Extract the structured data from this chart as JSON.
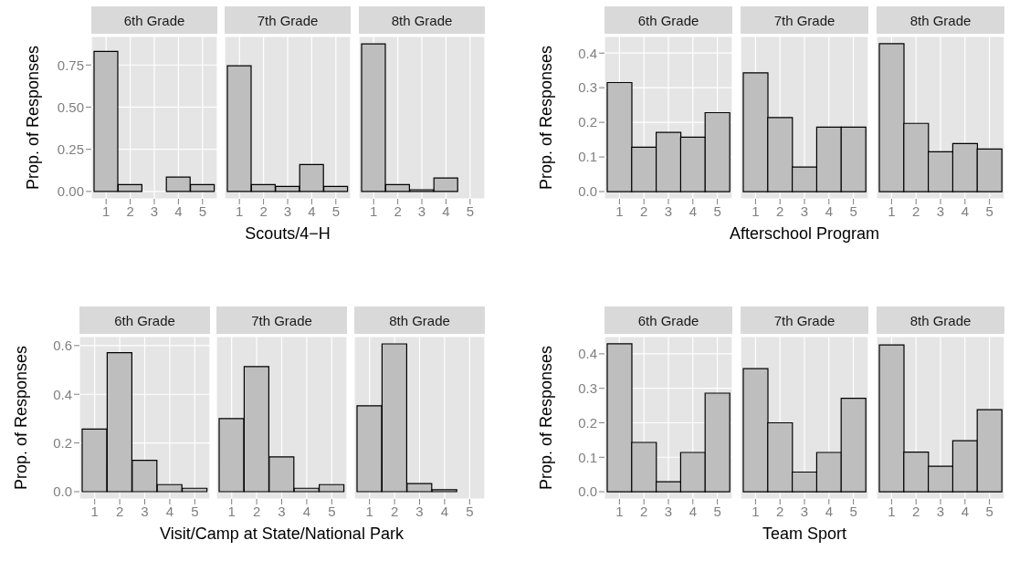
{
  "chart_data": [
    {
      "type": "bar",
      "title": "6th Grade",
      "ylabel": "Prop. of Responses",
      "categories": [
        "1",
        "2",
        "3",
        "4",
        "5"
      ],
      "values": [
        0.83,
        0.04,
        0,
        0.085,
        0.04
      ],
      "color": "#bebebe",
      "ylim": [
        -0.044,
        0.919
      ],
      "yticks": [
        {
          "value": 0,
          "label": "0.00"
        },
        {
          "value": 0.25,
          "label": "0.25"
        },
        {
          "value": 0.5,
          "label": "0.50"
        },
        0.75
      ],
      "grid": true
    },
    {
      "type": "bar",
      "title": "7th Grade",
      "xlabel": "Scouts/4−H",
      "categories": [
        "1",
        "2",
        "3",
        "4",
        "5"
      ],
      "values": [
        0.745,
        0.04,
        0.03,
        0.16,
        0.03
      ],
      "color": "#bebebe",
      "ylim": [
        -0.044,
        0.919
      ],
      "yticks": [
        0,
        0.25,
        0.5,
        0.75
      ],
      "grid": true,
      "tick_labels": "x"
    },
    {
      "type": "bar",
      "title": "8th Grade",
      "categories": [
        "1",
        "2",
        "3",
        "4",
        "5"
      ],
      "values": [
        0.875,
        0.04,
        0.01,
        0.08,
        0
      ],
      "color": "#bebebe",
      "ylim": [
        -0.044,
        0.919
      ],
      "yticks": [
        0,
        0.25,
        0.5,
        0.75
      ],
      "grid": true,
      "tick_labels": "x"
    },
    {
      "type": "bar",
      "title": "6th Grade",
      "ylabel": "Prop. of Responses",
      "categories": [
        "1",
        "2",
        "3",
        "4",
        "5"
      ],
      "values": [
        0.315,
        0.128,
        0.171,
        0.157,
        0.228
      ],
      "color": "#bebebe",
      "ylim": [
        -0.021,
        0.448
      ],
      "yticks": [
        {
          "value": 0,
          "label": "0.0"
        },
        0.1,
        0.2,
        0.3,
        0.4
      ],
      "grid": true
    },
    {
      "type": "bar",
      "title": "7th Grade",
      "xlabel": "Afterschool Program",
      "categories": [
        "1",
        "2",
        "3",
        "4",
        "5"
      ],
      "values": [
        0.343,
        0.214,
        0.071,
        0.186,
        0.186
      ],
      "color": "#bebebe",
      "ylim": [
        -0.021,
        0.448
      ],
      "yticks": [
        0,
        0.1,
        0.2,
        0.3,
        0.4
      ],
      "grid": true,
      "tick_labels": "x"
    },
    {
      "type": "bar",
      "title": "8th Grade",
      "categories": [
        "1",
        "2",
        "3",
        "4",
        "5"
      ],
      "values": [
        0.427,
        0.197,
        0.115,
        0.139,
        0.123
      ],
      "color": "#bebebe",
      "ylim": [
        -0.021,
        0.448
      ],
      "yticks": [
        0,
        0.1,
        0.2,
        0.3,
        0.4
      ],
      "grid": true,
      "tick_labels": "x"
    },
    {
      "type": "bar",
      "title": "6th Grade",
      "ylabel": "Prop. of Responses",
      "categories": [
        "1",
        "2",
        "3",
        "4",
        "5"
      ],
      "values": [
        0.257,
        0.571,
        0.129,
        0.029,
        0.014
      ],
      "color": "#bebebe",
      "ylim": [
        -0.03,
        0.637
      ],
      "yticks": [
        {
          "value": 0,
          "label": "0.0"
        },
        0.2,
        0.4,
        0.6
      ],
      "grid": true
    },
    {
      "type": "bar",
      "title": "7th Grade",
      "xlabel": "Visit/Camp at State/National Park",
      "categories": [
        "1",
        "2",
        "3",
        "4",
        "5"
      ],
      "values": [
        0.3,
        0.514,
        0.143,
        0.014,
        0.029
      ],
      "color": "#bebebe",
      "ylim": [
        -0.03,
        0.637
      ],
      "yticks": [
        0,
        0.2,
        0.4,
        0.6
      ],
      "grid": true,
      "tick_labels": "x"
    },
    {
      "type": "bar",
      "title": "8th Grade",
      "categories": [
        "1",
        "2",
        "3",
        "4",
        "5"
      ],
      "values": [
        0.353,
        0.607,
        0.033,
        0.008,
        0
      ],
      "color": "#bebebe",
      "ylim": [
        -0.03,
        0.637
      ],
      "yticks": [
        0,
        0.2,
        0.4,
        0.6
      ],
      "grid": true,
      "tick_labels": "x"
    },
    {
      "type": "bar",
      "title": "6th Grade",
      "ylabel": "Prop. of Responses",
      "categories": [
        "1",
        "2",
        "3",
        "4",
        "5"
      ],
      "values": [
        0.429,
        0.143,
        0.029,
        0.114,
        0.286
      ],
      "color": "#bebebe",
      "ylim": [
        -0.021,
        0.45
      ],
      "yticks": [
        {
          "value": 0,
          "label": "0.0"
        },
        0.1,
        0.2,
        0.3,
        0.4
      ],
      "grid": true
    },
    {
      "type": "bar",
      "title": "7th Grade",
      "xlabel": "Team Sport",
      "categories": [
        "1",
        "2",
        "3",
        "4",
        "5"
      ],
      "values": [
        0.357,
        0.2,
        0.057,
        0.114,
        0.271
      ],
      "color": "#bebebe",
      "ylim": [
        -0.021,
        0.45
      ],
      "yticks": [
        0,
        0.1,
        0.2,
        0.3,
        0.4
      ],
      "grid": true,
      "tick_labels": "x"
    },
    {
      "type": "bar",
      "title": "8th Grade",
      "categories": [
        "1",
        "2",
        "3",
        "4",
        "5"
      ],
      "values": [
        0.426,
        0.115,
        0.074,
        0.148,
        0.238
      ],
      "color": "#bebebe",
      "ylim": [
        -0.021,
        0.45
      ],
      "yticks": [
        0,
        0.1,
        0.2,
        0.3,
        0.4
      ],
      "grid": true,
      "tick_labels": "x"
    }
  ]
}
